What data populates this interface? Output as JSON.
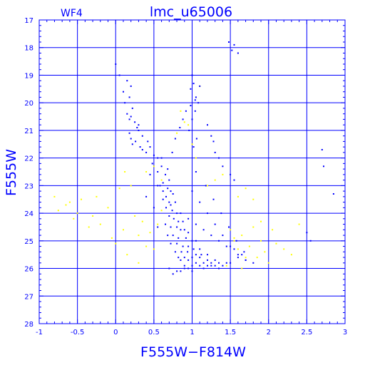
{
  "chart_data": {
    "type": "scatter",
    "title": "lmc_u65006",
    "panel_label": "WF4",
    "xlabel": "F555W−F814W",
    "ylabel": "F555W",
    "xlim": [
      -1,
      3
    ],
    "ylim": [
      28,
      17
    ],
    "y_inverted": true,
    "grid": true,
    "x_ticks": [
      "-1",
      "-0.5",
      "0",
      "0.5",
      "1",
      "1.5",
      "2",
      "2.5",
      "3"
    ],
    "y_ticks": [
      "17",
      "18",
      "19",
      "20",
      "21",
      "22",
      "23",
      "24",
      "25",
      "26",
      "27",
      "28"
    ],
    "colors": {
      "axes": "#0000ff",
      "grid": "#0000ff",
      "main_points": "#0000ff",
      "secondary_points": "#ffff00",
      "background": "#ffffff"
    },
    "series": [
      {
        "color": "#0000ff",
        "marker": "dot",
        "x": [
          0.0,
          0.05,
          0.15,
          0.2,
          0.1,
          0.18,
          0.12,
          0.22,
          0.2,
          0.25,
          0.28,
          0.3,
          0.18,
          0.2,
          0.26,
          0.22,
          0.32,
          0.35,
          0.4,
          0.15,
          0.18,
          0.3,
          0.35,
          0.42,
          0.45,
          0.5,
          0.55,
          0.48,
          0.6,
          0.55,
          0.65,
          0.7,
          0.62,
          0.58,
          0.68,
          0.72,
          0.75,
          0.66,
          0.62,
          0.7,
          0.78,
          0.72,
          0.66,
          0.74,
          0.8,
          0.85,
          0.7,
          0.76,
          0.82,
          0.88,
          0.65,
          0.72,
          0.8,
          0.85,
          0.9,
          0.95,
          0.68,
          0.75,
          0.82,
          0.92,
          1.0,
          1.05,
          0.72,
          0.8,
          0.88,
          0.95,
          1.02,
          1.1,
          0.78,
          0.86,
          0.94,
          1.05,
          1.12,
          1.2,
          0.82,
          0.9,
          1.0,
          1.1,
          1.2,
          1.3,
          0.85,
          0.95,
          1.05,
          1.15,
          1.25,
          1.35,
          1.45,
          0.9,
          1.0,
          1.1,
          1.2,
          1.3,
          1.4,
          1.5,
          1.6,
          0.95,
          1.05,
          1.15,
          1.25,
          1.35,
          1.45,
          1.55,
          1.65,
          1.7,
          1.0,
          1.1,
          1.2,
          1.3,
          1.4,
          1.5,
          1.6,
          1.7,
          1.8,
          1.05,
          1.18,
          1.28,
          1.38,
          1.48,
          1.58,
          1.68,
          1.0,
          1.02,
          0.98,
          1.05,
          1.08,
          1.04,
          1.1,
          1.0,
          0.96,
          1.06,
          1.02,
          1.2,
          1.25,
          1.28,
          1.3,
          1.35,
          1.4,
          1.5,
          1.55,
          1.52,
          1.48,
          1.55,
          1.6,
          2.7,
          2.72,
          2.5,
          2.55,
          2.85,
          0.6,
          0.45,
          0.55,
          0.4,
          0.5,
          0.7,
          0.8,
          0.9,
          0.75,
          0.85,
          0.95,
          1.0,
          1.15,
          1.25,
          1.35,
          0.55,
          0.62,
          0.68,
          0.74,
          0.78,
          0.84,
          0.88,
          0.92,
          0.98,
          1.04
        ],
        "y": [
          18.6,
          19.0,
          19.2,
          19.4,
          19.6,
          19.8,
          20.0,
          20.2,
          20.5,
          20.7,
          20.9,
          21.0,
          21.1,
          21.3,
          21.4,
          21.5,
          21.6,
          21.7,
          21.8,
          20.4,
          20.6,
          20.8,
          21.2,
          21.4,
          21.6,
          21.9,
          22.0,
          22.2,
          22.3,
          22.5,
          22.6,
          22.8,
          22.9,
          23.0,
          23.1,
          23.2,
          23.3,
          23.4,
          23.5,
          23.6,
          23.6,
          23.7,
          23.8,
          23.9,
          24.0,
          24.0,
          24.1,
          24.2,
          24.3,
          24.3,
          24.4,
          24.5,
          24.5,
          24.6,
          24.6,
          24.7,
          24.8,
          24.8,
          24.9,
          24.9,
          25.0,
          25.0,
          25.1,
          25.1,
          25.2,
          25.2,
          25.3,
          25.3,
          25.4,
          25.4,
          25.4,
          25.5,
          25.5,
          25.5,
          25.6,
          25.6,
          25.6,
          25.6,
          25.7,
          25.7,
          25.7,
          25.7,
          25.8,
          25.8,
          25.8,
          25.8,
          25.8,
          25.9,
          25.9,
          25.9,
          25.9,
          25.9,
          25.9,
          25.8,
          25.6,
          24.2,
          24.4,
          24.6,
          24.8,
          25.0,
          25.2,
          25.3,
          25.5,
          25.7,
          23.2,
          23.6,
          24.0,
          24.4,
          24.8,
          25.2,
          25.5,
          25.7,
          25.8,
          22.5,
          23.0,
          23.5,
          24.0,
          24.5,
          25.0,
          25.4,
          19.0,
          19.3,
          19.5,
          19.8,
          20.0,
          20.3,
          19.4,
          20.6,
          21.0,
          21.3,
          21.6,
          20.8,
          21.2,
          21.4,
          21.8,
          22.0,
          22.3,
          22.6,
          22.8,
          18.1,
          17.8,
          17.9,
          18.2,
          21.7,
          22.3,
          24.7,
          25.0,
          23.3,
          22.0,
          22.6,
          23.0,
          23.4,
          23.8,
          26.0,
          26.1,
          26.0,
          26.2,
          26.1,
          26.0,
          26.1,
          26.0,
          25.9,
          26.0,
          24.5,
          23.2,
          22.4,
          21.8,
          21.3,
          20.9,
          20.6,
          20.3,
          20.1,
          19.9
        ]
      },
      {
        "color": "#ffff00",
        "marker": "dot",
        "x": [
          -0.8,
          -0.75,
          -0.6,
          -0.55,
          -0.45,
          -0.3,
          -0.25,
          -0.2,
          -0.1,
          -0.05,
          0.05,
          0.1,
          0.12,
          0.2,
          0.25,
          0.3,
          0.35,
          0.4,
          0.45,
          0.5,
          0.55,
          0.6,
          1.2,
          1.3,
          1.4,
          1.5,
          1.55,
          1.6,
          1.65,
          1.7,
          1.75,
          1.8,
          1.85,
          1.9,
          1.95,
          2.0,
          2.05,
          2.1,
          2.2,
          2.3,
          2.4,
          1.6,
          1.7,
          1.8,
          1.9,
          1.45,
          1.55,
          1.65,
          0.4,
          0.5,
          0.6,
          0.8,
          0.9,
          1.0,
          1.1,
          0.85,
          0.95,
          1.05,
          -0.65,
          -0.5,
          -0.35,
          0.0,
          0.15,
          0.3
        ],
        "y": [
          23.4,
          23.9,
          23.6,
          24.2,
          23.5,
          24.1,
          23.4,
          24.4,
          23.8,
          24.9,
          23.1,
          24.6,
          22.5,
          23.0,
          24.1,
          24.8,
          24.3,
          25.2,
          24.7,
          25.3,
          24.4,
          23.9,
          23.0,
          22.8,
          22.6,
          24.6,
          24.9,
          25.3,
          24.8,
          25.6,
          25.2,
          24.5,
          25.6,
          25.0,
          25.4,
          25.8,
          24.6,
          25.1,
          25.3,
          25.5,
          24.4,
          23.4,
          23.1,
          23.5,
          24.3,
          25.9,
          25.0,
          26.0,
          22.5,
          22.3,
          22.8,
          21.1,
          20.7,
          21.5,
          19.4,
          20.3,
          20.8,
          22.0,
          23.7,
          24.0,
          24.5,
          25.1,
          25.5,
          25.8
        ]
      }
    ]
  }
}
